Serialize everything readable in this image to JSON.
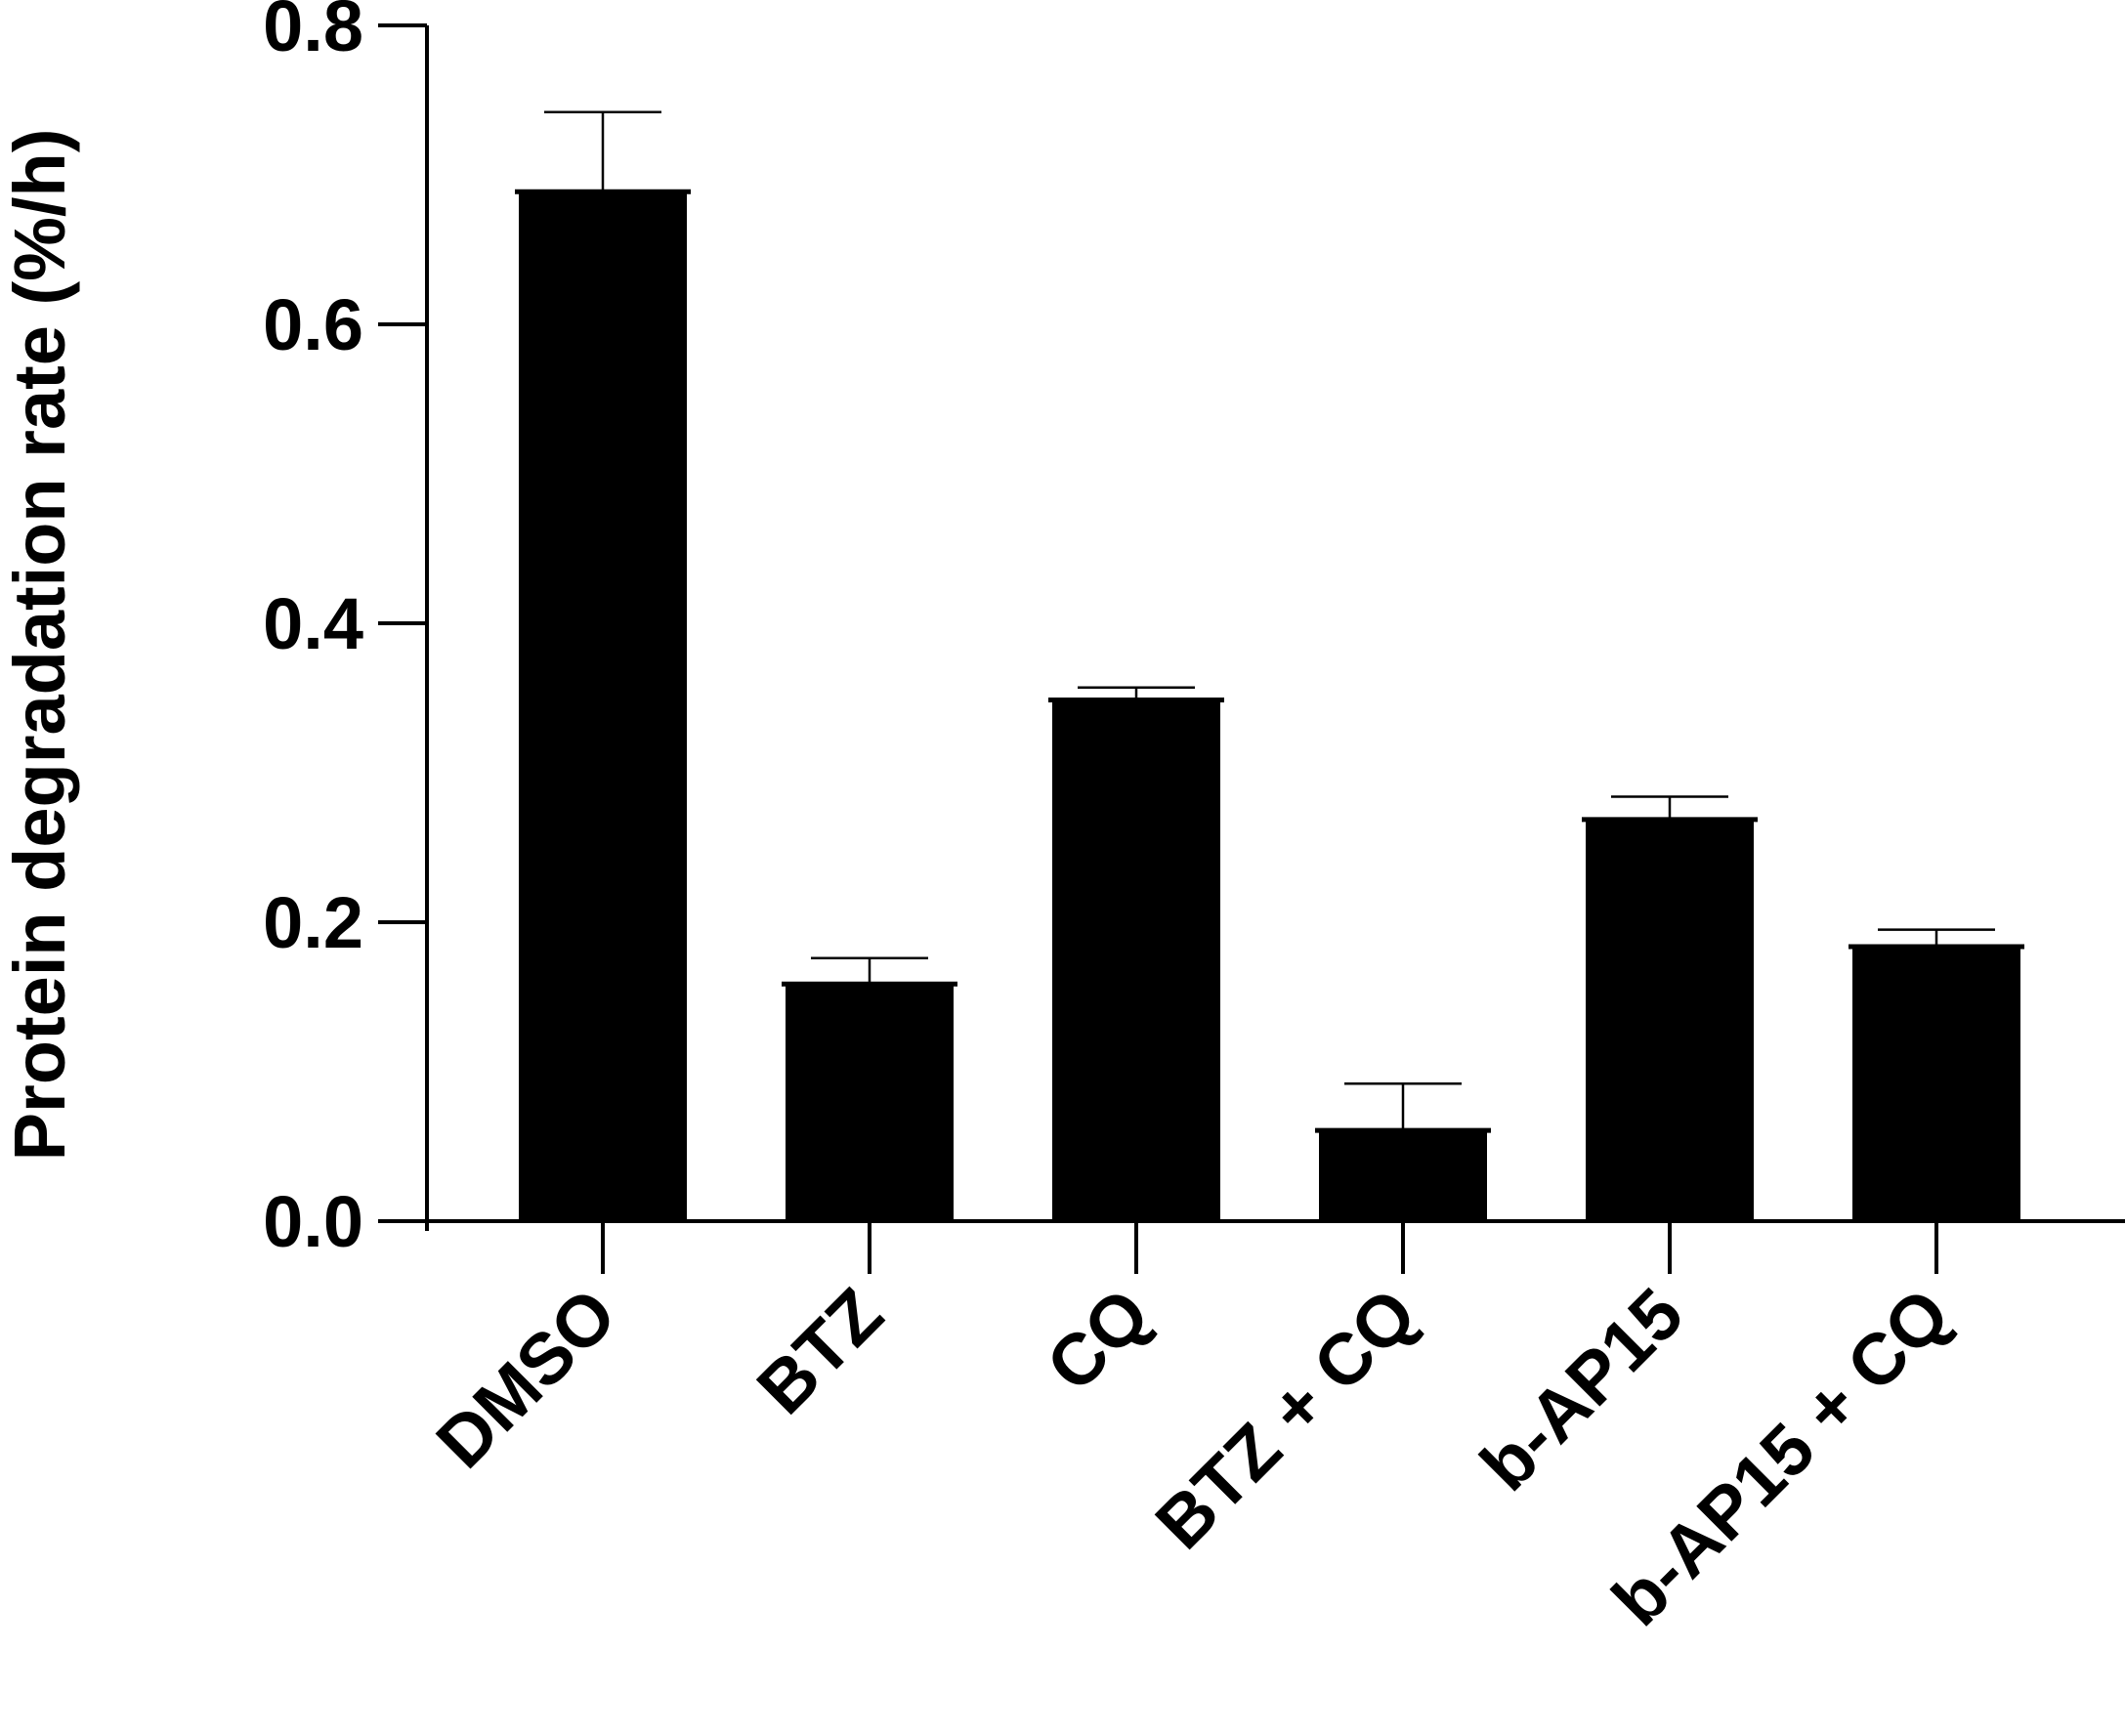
{
  "chart_data": {
    "type": "bar",
    "title": "",
    "xlabel": "",
    "ylabel": "Protein degradation rate (%/h)",
    "categories": [
      "DMSO",
      "BTZ",
      "CQ",
      "BTZ + CQ",
      "b-AP15",
      "b-AP15 + CQ"
    ],
    "values": [
      0.69,
      0.16,
      0.35,
      0.062,
      0.27,
      0.185
    ],
    "error_upper": [
      0.742,
      0.176,
      0.357,
      0.092,
      0.284,
      0.195
    ],
    "ylim": [
      0,
      0.8
    ],
    "yticks": [
      "0.0",
      "0.2",
      "0.4",
      "0.6",
      "0.8"
    ],
    "ytick_values": [
      0,
      0.2,
      0.4,
      0.6,
      0.8
    ],
    "grid": false,
    "legend": "none",
    "bar_color": "#000000"
  }
}
